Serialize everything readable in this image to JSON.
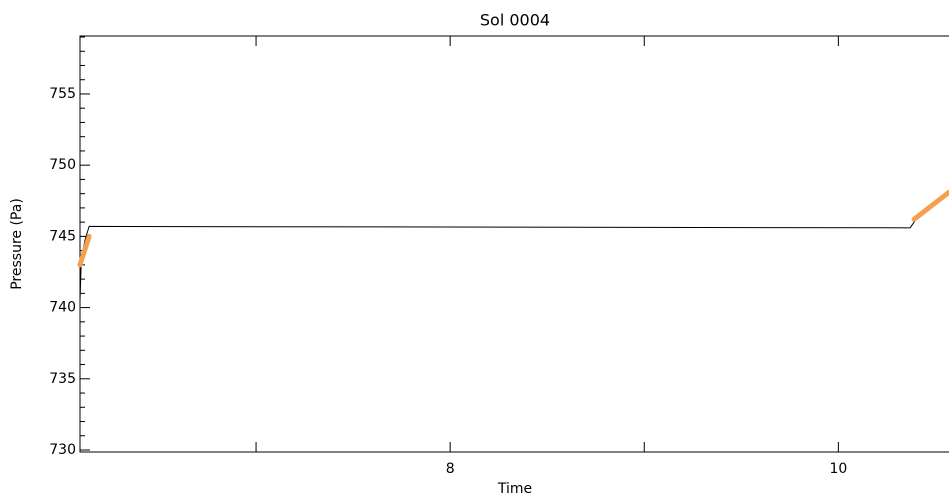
{
  "chart_data": {
    "type": "line",
    "title": "Sol 0004",
    "xlabel": "Time",
    "ylabel": "Pressure (Pa)",
    "xlim": [
      6.093,
      10.57
    ],
    "ylim": [
      729.86,
      759.07
    ],
    "xticks": [
      8,
      10
    ],
    "xminor_ticks": [
      7,
      9
    ],
    "yticks": [
      730,
      735,
      740,
      745,
      750,
      755
    ],
    "yminor_ticks": [
      731,
      732,
      733,
      734,
      736,
      737,
      738,
      739,
      741,
      742,
      743,
      744,
      746,
      747,
      748,
      749,
      751,
      752,
      753,
      754,
      756,
      757,
      758,
      759
    ],
    "series": [
      {
        "color": "#000000",
        "width": 1,
        "x": [
          6.093,
          6.1,
          6.12,
          6.14,
          8.3,
          10.37,
          10.4,
          10.45,
          10.5,
          10.57
        ],
        "values": [
          740.5,
          743.5,
          744.8,
          745.7,
          745.65,
          745.6,
          746.2,
          747.0,
          747.5,
          748.0
        ]
      },
      {
        "color": "#f4a050",
        "width": 5,
        "x": [
          6.093,
          6.14,
          8.3,
          10.39,
          10.57
        ],
        "values": [
          743.0,
          745.0,
          null,
          746.2,
          748.1
        ]
      }
    ]
  }
}
